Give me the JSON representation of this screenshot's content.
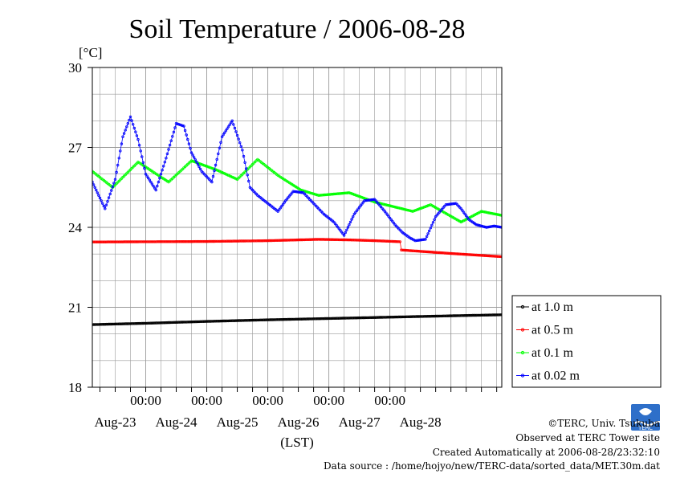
{
  "chart_data": {
    "type": "line",
    "title": "Soil Temperature / 2006-08-28",
    "ylabel": "[°C]",
    "xlabel": "(LST)",
    "ylim": [
      18,
      30
    ],
    "yticks": [
      "18",
      "21",
      "24",
      "27",
      "30"
    ],
    "xlim_hours": [
      -21,
      140
    ],
    "time_labels": [
      "00:00",
      "00:00",
      "00:00",
      "00:00",
      "00:00"
    ],
    "date_labels": [
      "Aug-23",
      "Aug-24",
      "Aug-25",
      "Aug-26",
      "Aug-27",
      "Aug-28"
    ],
    "grid": true,
    "legend_position": "right",
    "series": [
      {
        "name": "at 1.0 m",
        "color": "#000000",
        "x": [
          -21,
          0,
          24,
          48,
          72,
          96,
          120,
          140
        ],
        "y": [
          20.35,
          20.4,
          20.47,
          20.53,
          20.58,
          20.63,
          20.68,
          20.72
        ]
      },
      {
        "name": "at 0.5 m",
        "color": "#ff0000",
        "x": [
          -21,
          0,
          24,
          48,
          68,
          80,
          90,
          100,
          100.5,
          120,
          140
        ],
        "y": [
          23.45,
          23.46,
          23.47,
          23.5,
          23.55,
          23.53,
          23.5,
          23.46,
          23.15,
          23.02,
          22.9
        ]
      },
      {
        "name": "at 0.1 m",
        "color": "#00ff00",
        "x": [
          -21,
          -13,
          -3,
          9,
          18,
          28,
          36,
          44,
          52,
          61,
          68,
          80,
          90,
          105,
          112,
          124,
          132,
          140
        ],
        "y": [
          26.1,
          25.5,
          26.45,
          25.7,
          26.5,
          26.15,
          25.8,
          26.55,
          25.95,
          25.4,
          25.2,
          25.3,
          24.95,
          24.6,
          24.85,
          24.2,
          24.6,
          24.45
        ]
      },
      {
        "name": "at 0.02 m",
        "color": "#0000ff",
        "x": [
          -21,
          -16,
          -12,
          -9,
          -6,
          -3,
          0,
          4,
          8,
          12,
          15,
          18,
          22,
          26,
          30,
          34,
          38,
          41,
          44,
          48,
          52,
          55,
          58,
          62,
          66,
          70,
          74,
          78,
          82,
          86,
          90,
          94,
          98,
          101,
          104,
          106,
          110,
          114,
          118,
          122,
          124,
          127,
          130,
          134,
          137,
          140
        ],
        "y": [
          25.7,
          24.7,
          25.8,
          27.4,
          28.15,
          27.3,
          26.0,
          25.4,
          26.6,
          27.9,
          27.8,
          26.8,
          26.1,
          25.7,
          27.4,
          28.0,
          26.9,
          25.5,
          25.2,
          24.9,
          24.6,
          25.0,
          25.35,
          25.3,
          24.9,
          24.5,
          24.2,
          23.7,
          24.5,
          25.0,
          25.05,
          24.6,
          24.1,
          23.8,
          23.6,
          23.5,
          23.55,
          24.4,
          24.85,
          24.9,
          24.7,
          24.3,
          24.1,
          24.0,
          24.05,
          24.0
        ]
      }
    ]
  },
  "footer": {
    "copyright": "©TERC, Univ. Tsukuba",
    "observed": "Observed at TERC Tower site",
    "created": "Created Automatically at 2006-08-28/23:32:10",
    "source": "Data source : /home/hojyo/new/TERC-data/sorted_data/MET.30m.dat",
    "logo_text": "TERC"
  },
  "colors": {
    "grid": "#999999",
    "frame": "#000000"
  }
}
